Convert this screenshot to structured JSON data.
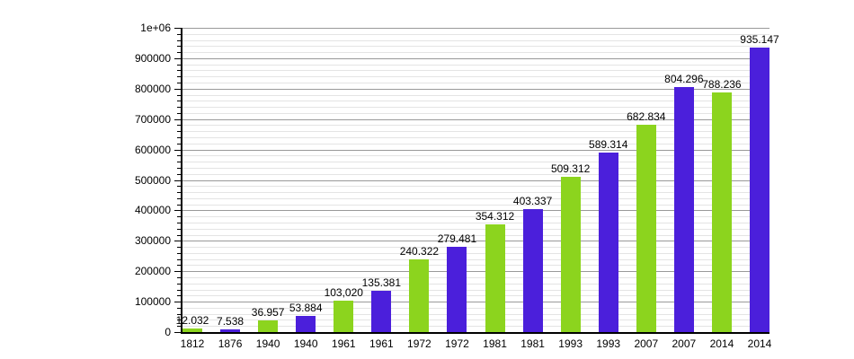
{
  "figure": {
    "background": "#ffffff"
  },
  "chart_data": {
    "type": "bar",
    "title": "",
    "xlabel": "",
    "ylabel": "",
    "legend_position": "none",
    "grid": true,
    "categories": [
      "1812",
      "1876",
      "1940",
      "1940",
      "1961",
      "1961",
      "1972",
      "1972",
      "1981",
      "1981",
      "1993",
      "1993",
      "2007",
      "2007",
      "2014",
      "2014"
    ],
    "values": [
      12032,
      7538,
      36957,
      53884,
      103020,
      135381,
      240322,
      279481,
      354312,
      403337,
      509312,
      589314,
      682834,
      804296,
      788236,
      935147
    ],
    "value_labels": [
      "12.032",
      "7.538",
      "36.957",
      "53.884",
      "103,020",
      "135.381",
      "240.322",
      "279.481",
      "354.312",
      "403.337",
      "509.312",
      "589.314",
      "682.834",
      "804.296",
      "788.236",
      "935.147"
    ],
    "bar_colors": [
      "green",
      "blue",
      "green",
      "blue",
      "green",
      "blue",
      "green",
      "blue",
      "green",
      "blue",
      "green",
      "blue",
      "green",
      "blue",
      "green",
      "blue"
    ],
    "palette": {
      "green": "#8CD41E",
      "blue": "#4B1FDB"
    },
    "ylim": [
      0,
      1000000
    ],
    "y_major_step": 100000,
    "y_minor_step": 20000,
    "y_tick_labels": [
      "0",
      "100000",
      "200000",
      "300000",
      "400000",
      "500000",
      "600000",
      "700000",
      "800000",
      "900000",
      "1e+06"
    ],
    "grid_colors": {
      "major": "#999999",
      "minor": "#e4e4e4",
      "axis": "#000000"
    }
  }
}
